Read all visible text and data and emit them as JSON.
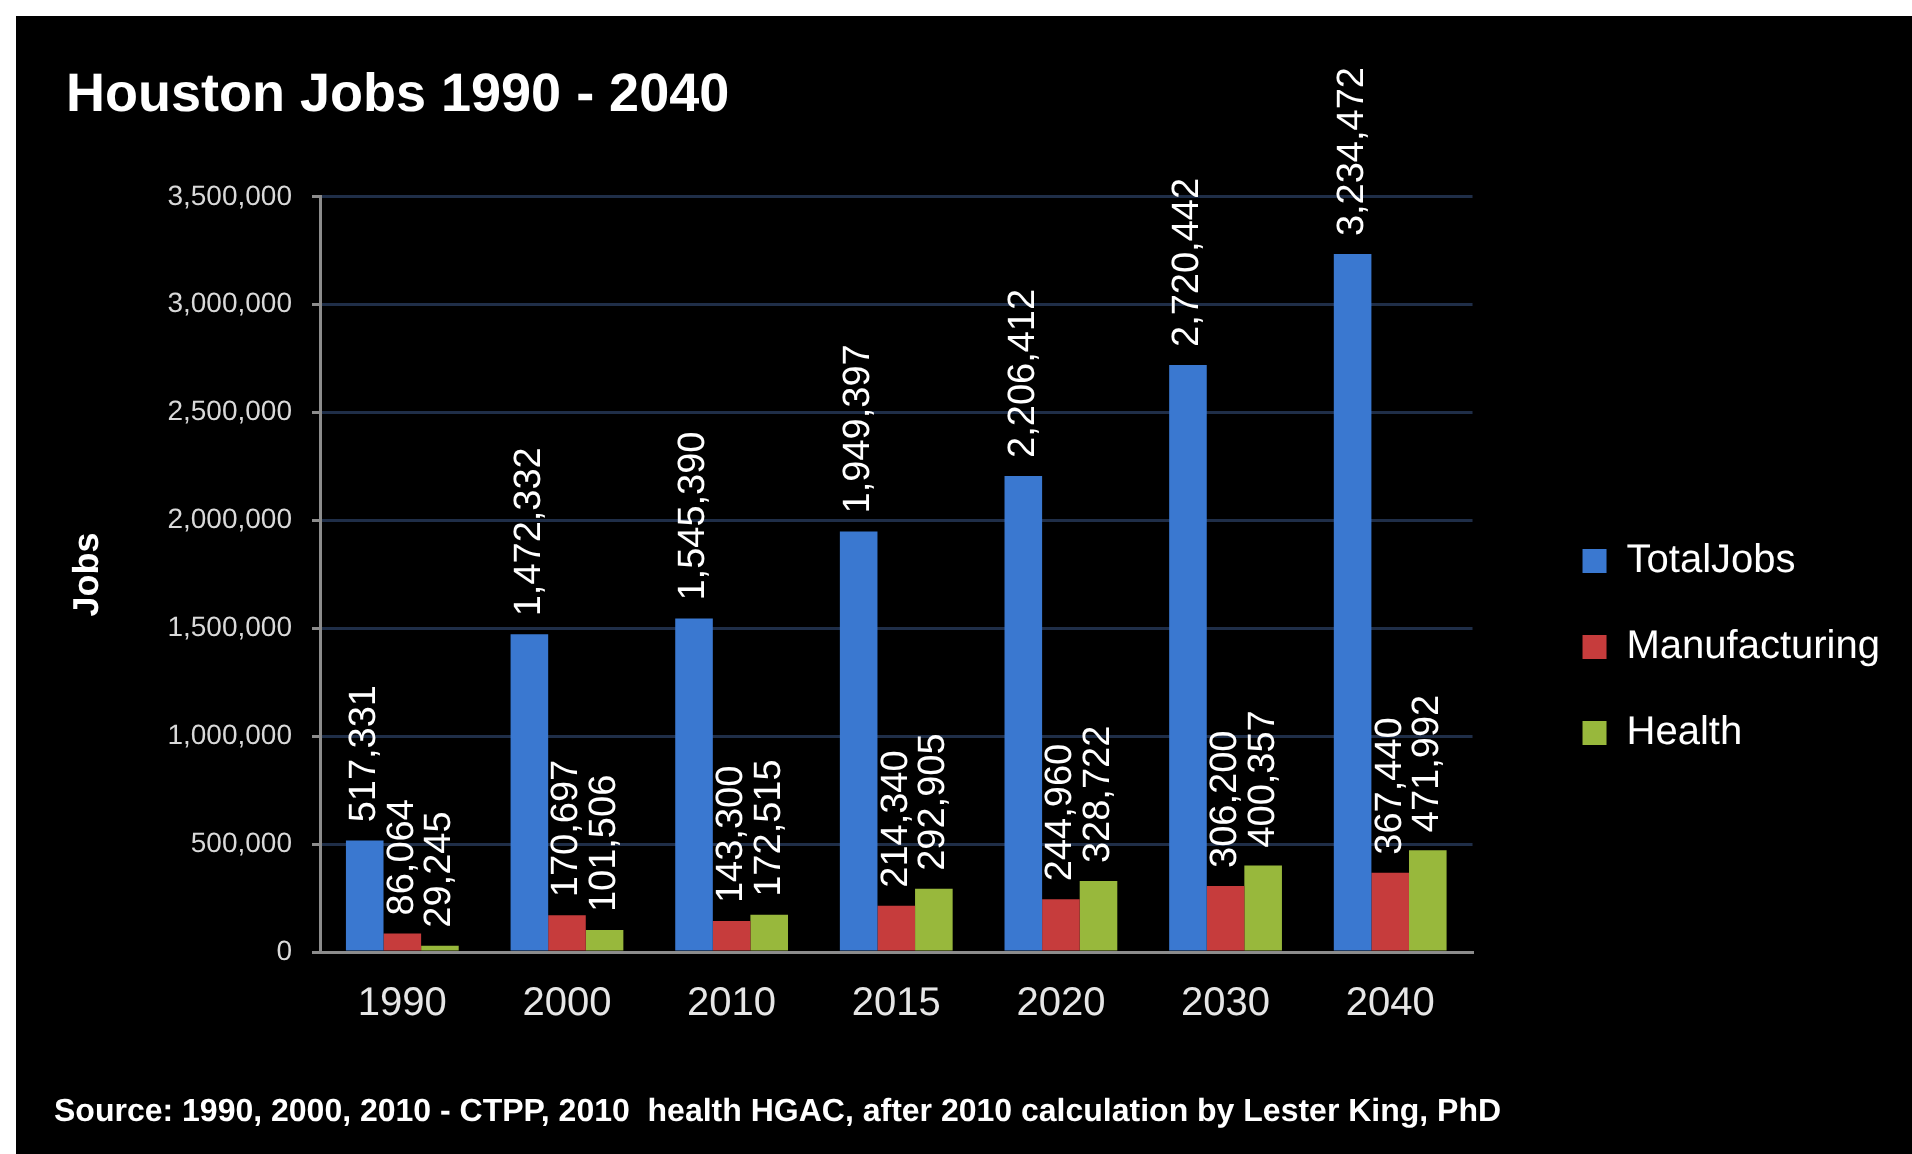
{
  "chart_data": {
    "type": "bar",
    "title": "Houston Jobs 1990 - 2040",
    "ylabel": "Jobs",
    "categories": [
      "1990",
      "2000",
      "2010",
      "2015",
      "2020",
      "2030",
      "2040"
    ],
    "series": [
      {
        "name": "TotalJobs",
        "color": "#3a78d0",
        "values": [
          517331,
          1472332,
          1545390,
          1949397,
          2206412,
          2720442,
          3234472
        ],
        "value_labels": [
          "517,331",
          "1,472,332",
          "1,545,390",
          "1,949,397",
          "2,206,412",
          "2,720,442",
          "3,234,472"
        ]
      },
      {
        "name": "Manufacturing",
        "color": "#c63c3c",
        "values": [
          86064,
          170697,
          143300,
          214340,
          244960,
          306200,
          367440
        ],
        "value_labels": [
          "86,064",
          "170,697",
          "143,300",
          "214,340",
          "244,960",
          "306,200",
          "367,440"
        ]
      },
      {
        "name": "Health",
        "color": "#98b83c",
        "values": [
          29245,
          101506,
          172515,
          292905,
          328722,
          400357,
          471992
        ],
        "value_labels": [
          "29,245",
          "101,506",
          "172,515",
          "292,905",
          "328,722",
          "400,357",
          "471,992"
        ]
      }
    ],
    "ylim": [
      0,
      3500000
    ],
    "yticks": [
      0,
      {
        "value": 500000,
        "label": "500,000"
      },
      {
        "value": 1000000,
        "label": "1,000,000"
      },
      {
        "value": 1500000,
        "label": "1,500,000"
      },
      {
        "value": 2000000,
        "label": "2,000,000"
      },
      {
        "value": 2500000,
        "label": "2,500,000"
      },
      {
        "value": 3000000,
        "label": "3,000,000"
      },
      {
        "value": 3500000,
        "label": "3,500,000"
      }
    ],
    "grid": "y",
    "legend": "right",
    "annotations": [
      "Source: 1990, 2000, 2010 - CTPP, 2010  health HGAC, after 2010 calculation by Lester King, PhD"
    ]
  }
}
